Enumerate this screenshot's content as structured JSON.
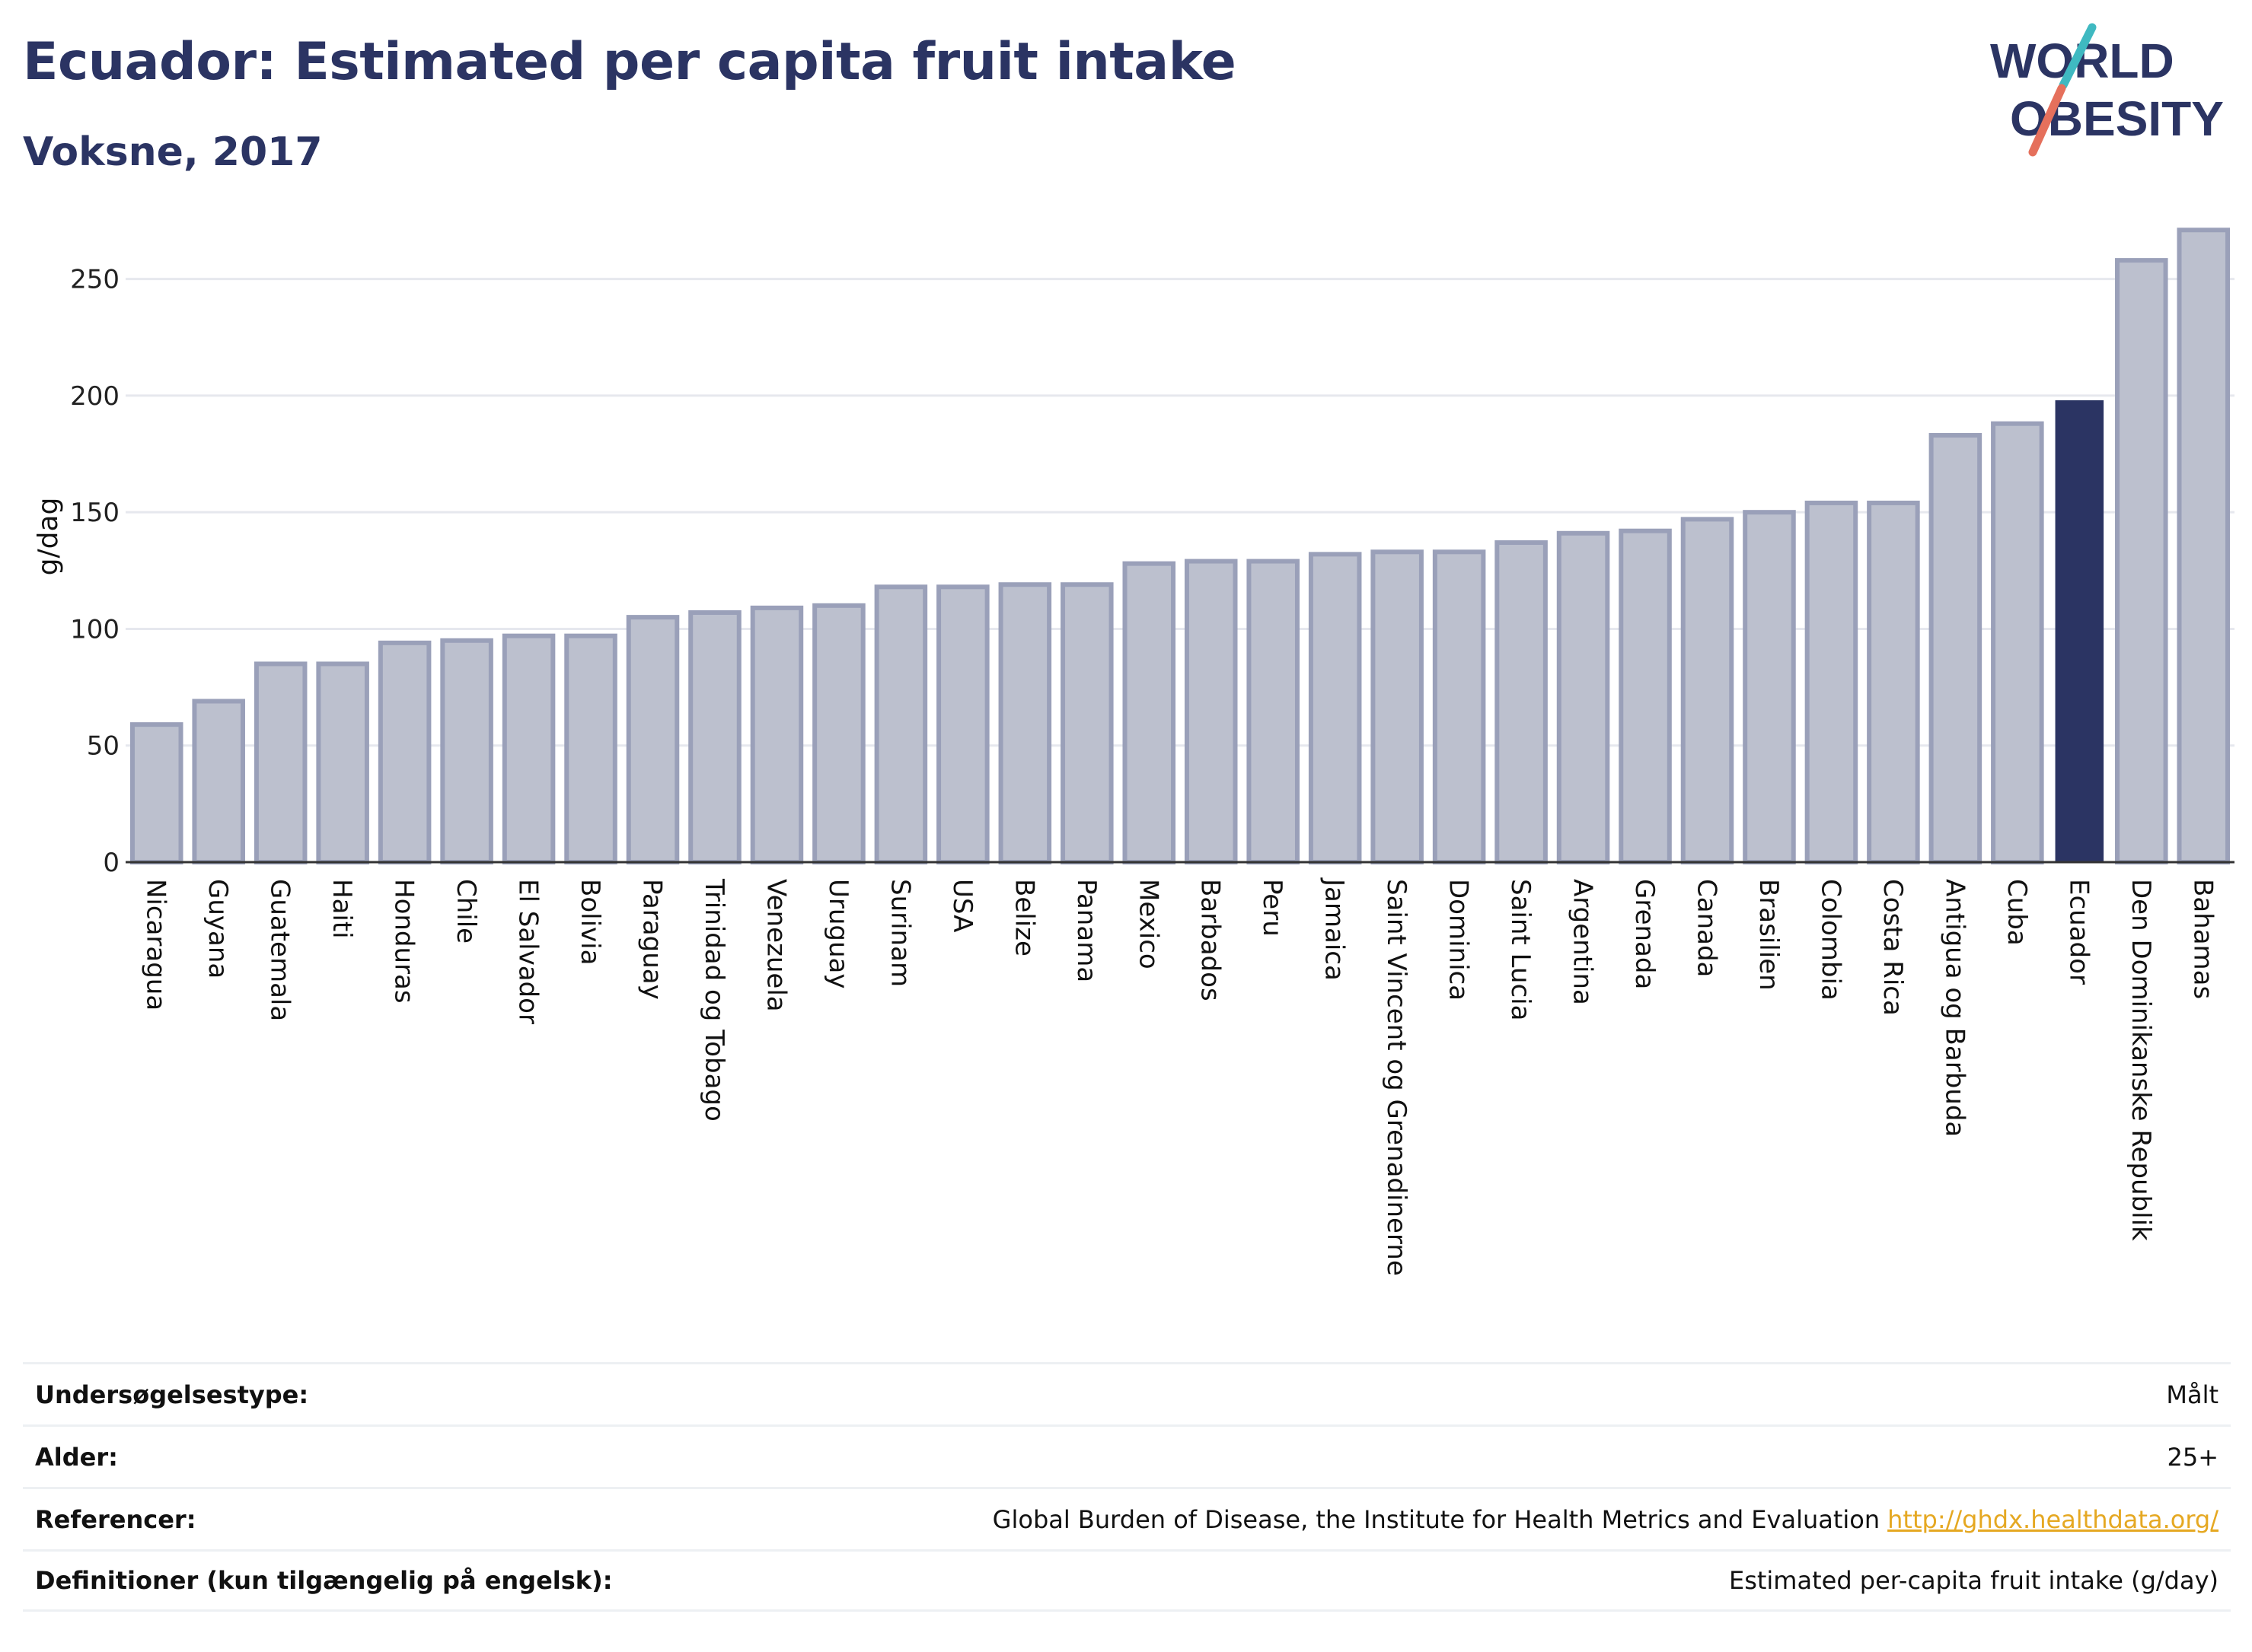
{
  "header": {
    "title": "Ecuador: Estimated per capita fruit intake",
    "subtitle": "Voksne, 2017"
  },
  "logo": {
    "line1": "WORLD",
    "line2": "OBESITY",
    "accent_teal": "#3fb9c1",
    "accent_coral": "#e5705c",
    "text_color": "#2b3463"
  },
  "colors": {
    "bar_default_fill": "#bcc0ce",
    "bar_default_stroke": "#9aa0b9",
    "bar_highlight": "#2b3463",
    "grid": "#e6e8ee",
    "title": "#2b3463"
  },
  "chart_data": {
    "type": "bar",
    "title": "Ecuador: Estimated per capita fruit intake",
    "subtitle": "Voksne, 2017",
    "xlabel": "",
    "ylabel": "g/dag",
    "ylim": [
      0,
      275
    ],
    "yticks": [
      0,
      50,
      100,
      150,
      200,
      250
    ],
    "grid": true,
    "highlight": "Ecuador",
    "categories": [
      "Nicaragua",
      "Guyana",
      "Guatemala",
      "Haiti",
      "Honduras",
      "Chile",
      "El Salvador",
      "Bolivia",
      "Paraguay",
      "Trinidad og Tobago",
      "Venezuela",
      "Uruguay",
      "Surinam",
      "USA",
      "Belize",
      "Panama",
      "Mexico",
      "Barbados",
      "Peru",
      "Jamaica",
      "Saint Vincent og Grenadinerne",
      "Dominica",
      "Saint Lucia",
      "Argentina",
      "Grenada",
      "Canada",
      "Brasilien",
      "Colombia",
      "Costa Rica",
      "Antigua og Barbuda",
      "Cuba",
      "Ecuador",
      "Den Dominikanske Republik",
      "Bahamas"
    ],
    "values": [
      59,
      69,
      85,
      85,
      94,
      95,
      97,
      97,
      105,
      107,
      109,
      110,
      118,
      118,
      119,
      119,
      128,
      129,
      129,
      132,
      133,
      133,
      137,
      141,
      142,
      147,
      150,
      154,
      154,
      183,
      188,
      198,
      258,
      271
    ]
  },
  "meta": [
    {
      "key": "Undersøgelsestype:",
      "value": "Målt"
    },
    {
      "key": "Alder:",
      "value": "25+"
    },
    {
      "key": "Referencer:",
      "value": "Global Burden of Disease, the Institute for Health Metrics and Evaluation",
      "link": "http://ghdx.healthdata.org/"
    },
    {
      "key": "Definitioner (kun tilgængelig på engelsk):",
      "value": "Estimated per-capita fruit intake (g/day)"
    }
  ]
}
